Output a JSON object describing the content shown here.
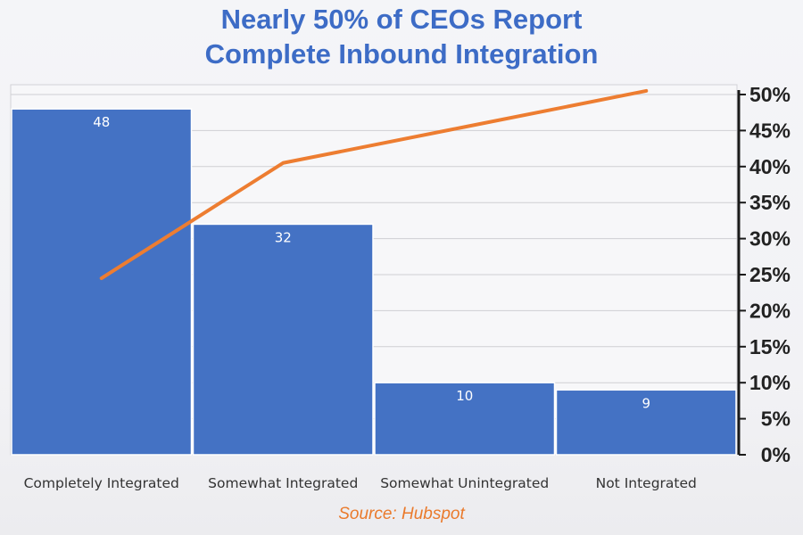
{
  "title": {
    "line1": "Nearly 50% of CEOs Report",
    "line2": "Complete Inbound Integration"
  },
  "source": "Source: Hubspot",
  "colors": {
    "title": "#3d6cc6",
    "bar": "#4472c4",
    "line": "#ed7d31",
    "source": "#ea7a2c"
  },
  "chart_data": {
    "type": "bar",
    "categories": [
      "Completely Integrated",
      "Somewhat Integrated",
      "Somewhat Unintegrated",
      "Not Integrated"
    ],
    "series": [
      {
        "type": "bar",
        "values": [
          48,
          32,
          10,
          9
        ],
        "data_labels": [
          "48",
          "32",
          "10",
          "9"
        ]
      },
      {
        "type": "line",
        "values": [
          24.5,
          40.5,
          45.5,
          50.5
        ]
      }
    ],
    "secondary_y": {
      "ticks": [
        "0%",
        "5%",
        "10%",
        "15%",
        "20%",
        "25%",
        "30%",
        "35%",
        "40%",
        "45%",
        "50%"
      ],
      "ylim": [
        0,
        50
      ],
      "position": "right"
    },
    "ylim": [
      0,
      50
    ],
    "grid": true,
    "legend": "none"
  }
}
